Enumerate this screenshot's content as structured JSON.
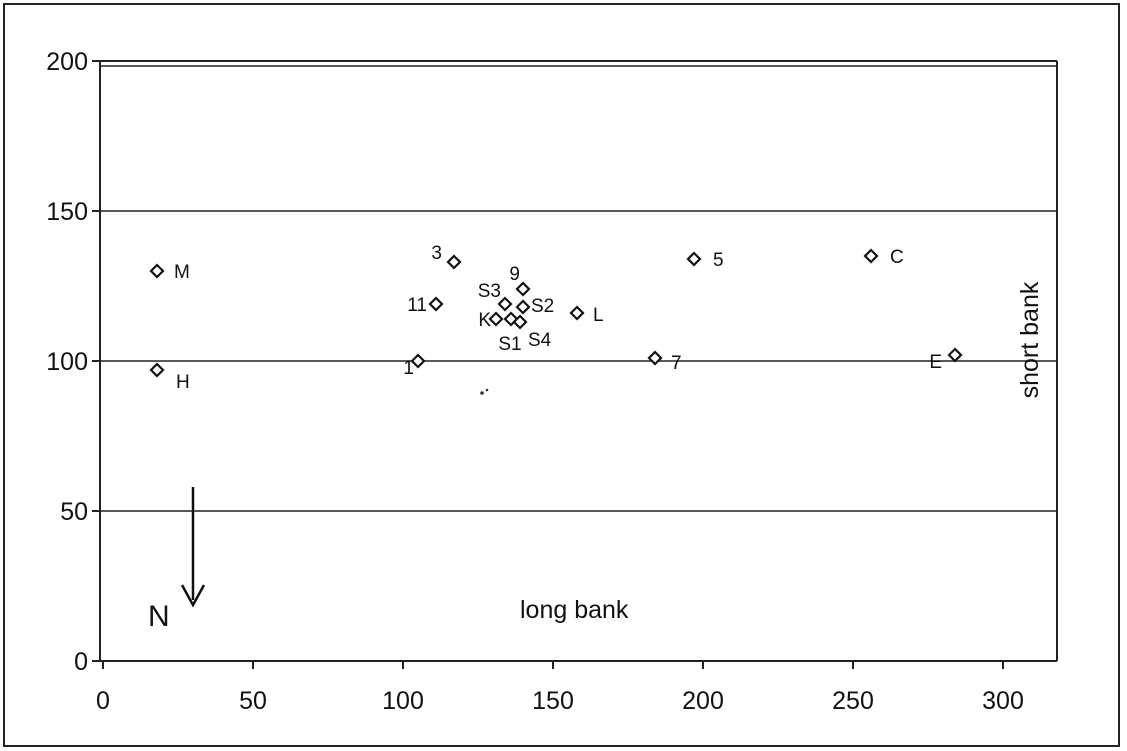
{
  "chart_data": {
    "type": "scatter",
    "title": "",
    "xlabel": "",
    "ylabel": "",
    "xlim": [
      0,
      320
    ],
    "ylim": [
      0,
      200
    ],
    "x_ticks": [
      0,
      50,
      100,
      150,
      200,
      250,
      300
    ],
    "y_ticks": [
      0,
      50,
      100,
      150,
      200
    ],
    "grid": "horizontal",
    "legend": "none",
    "marker": "open-diamond",
    "colors": {
      "marker": "#111111",
      "gridline": "#222222",
      "text": "#111111"
    },
    "points": [
      {
        "label": "M",
        "x": 18,
        "y": 130
      },
      {
        "label": "H",
        "x": 18,
        "y": 97
      },
      {
        "label": "3",
        "x": 117,
        "y": 133
      },
      {
        "label": "11",
        "x": 111,
        "y": 119
      },
      {
        "label": "1",
        "x": 105,
        "y": 100
      },
      {
        "label": "9",
        "x": 140,
        "y": 124
      },
      {
        "label": "S3",
        "x": 134,
        "y": 119
      },
      {
        "label": "S2",
        "x": 140,
        "y": 118
      },
      {
        "label": "K",
        "x": 131,
        "y": 114
      },
      {
        "label": "S1",
        "x": 136,
        "y": 114
      },
      {
        "label": "S4",
        "x": 139,
        "y": 113
      },
      {
        "label": "L",
        "x": 158,
        "y": 116
      },
      {
        "label": "5",
        "x": 197,
        "y": 134
      },
      {
        "label": "7",
        "x": 184,
        "y": 101
      },
      {
        "label": "C",
        "x": 256,
        "y": 135
      },
      {
        "label": "E",
        "x": 284,
        "y": 102
      }
    ],
    "annotations": {
      "bottom_bank": "long bank",
      "right_bank": "short bank",
      "north": "N"
    }
  }
}
